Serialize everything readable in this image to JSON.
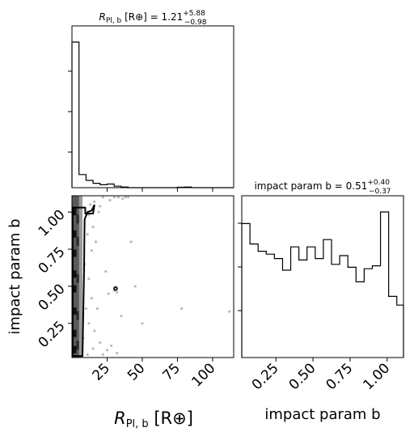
{
  "chart_data": [
    {
      "type": "histogram",
      "panel": "top-left",
      "parameter": "R_Pl,b",
      "title": {
        "prefix": "R",
        "sub": "Pl, b",
        "unit": " [R⊕] = 1.21",
        "sup": "+5.88",
        "inf": "−0.98"
      },
      "xlim": [
        0,
        115
      ],
      "bin_edges": [
        0,
        5,
        10,
        15,
        20,
        25,
        30,
        35,
        40,
        45,
        50,
        55,
        60,
        65,
        70,
        75,
        80,
        85,
        90,
        95,
        100,
        105,
        110,
        115
      ],
      "counts": [
        1.0,
        0.09,
        0.05,
        0.03,
        0.02,
        0.025,
        0.01,
        0.004,
        0,
        0,
        0,
        0,
        0,
        0,
        0,
        0.003,
        0.004,
        0,
        0,
        0,
        0,
        0,
        0
      ],
      "grid": false
    },
    {
      "type": "histogram",
      "panel": "bottom-right",
      "parameter": "impact param b",
      "title": {
        "prefix": "impact param b = 0.51",
        "sup": "+0.40",
        "inf": "−0.37"
      },
      "xlim": [
        0.02,
        1.11
      ],
      "bin_edges": [
        0.02,
        0.075,
        0.13,
        0.185,
        0.24,
        0.295,
        0.35,
        0.405,
        0.46,
        0.515,
        0.57,
        0.625,
        0.68,
        0.735,
        0.79,
        0.845,
        0.9,
        0.955,
        1.01,
        1.065,
        1.11
      ],
      "counts": [
        0.92,
        0.78,
        0.73,
        0.71,
        0.68,
        0.6,
        0.76,
        0.67,
        0.76,
        0.68,
        0.81,
        0.64,
        0.7,
        0.62,
        0.52,
        0.61,
        0.63,
        1.0,
        0.42,
        0.36
      ],
      "x_ticks": [
        "0.25",
        "0.50",
        "0.75",
        "1.00"
      ],
      "xlabel": "impact param b",
      "grid": false
    },
    {
      "type": "scatter",
      "panel": "bottom-left",
      "description_fields": "2D density of R_Pl,b versus impact param b",
      "xlim": [
        0,
        115
      ],
      "ylim": [
        0.02,
        1.11
      ],
      "x_ticks": [
        "25",
        "50",
        "75",
        "100"
      ],
      "y_ticks": [
        "0.25",
        "0.50",
        "0.75",
        "1.00"
      ],
      "xlabel": {
        "prefix": "R",
        "sub": "Pl, b",
        "unit": " [R⊕]"
      },
      "ylabel": "impact param b",
      "points": [
        [
          30,
          1.1
        ],
        [
          33,
          1.1
        ],
        [
          36,
          1.09
        ],
        [
          38,
          1.1
        ],
        [
          40,
          1.1
        ],
        [
          22,
          1.1
        ],
        [
          27,
          1.08
        ],
        [
          12,
          0.98
        ],
        [
          15,
          0.9
        ],
        [
          17,
          0.8
        ],
        [
          14,
          0.74
        ],
        [
          11,
          0.85
        ],
        [
          13,
          1.05
        ],
        [
          16,
          1.07
        ],
        [
          19,
          1.0
        ],
        [
          9,
          0.65
        ],
        [
          12,
          0.55
        ],
        [
          14,
          0.42
        ],
        [
          10,
          0.35
        ],
        [
          12,
          0.25
        ],
        [
          16,
          0.2
        ],
        [
          20,
          0.12
        ],
        [
          25,
          0.07
        ],
        [
          28,
          0.1
        ],
        [
          32,
          0.05
        ],
        [
          22,
          0.04
        ],
        [
          15,
          0.08
        ],
        [
          35,
          0.3
        ],
        [
          45,
          0.5
        ],
        [
          50,
          0.25
        ],
        [
          78,
          0.35
        ],
        [
          112,
          0.33
        ],
        [
          31,
          0.49
        ],
        [
          30,
          0.47
        ],
        [
          32,
          0.46
        ],
        [
          42,
          0.8
        ],
        [
          24,
          0.6
        ],
        [
          26,
          0.45
        ],
        [
          8,
          0.15
        ],
        [
          18,
          0.35
        ],
        [
          11,
          0.04
        ],
        [
          20,
          1.04
        ]
      ],
      "contour": [
        [
          0.5,
          0.03
        ],
        [
          7.5,
          0.03
        ],
        [
          7.8,
          0.2
        ],
        [
          8.2,
          0.4
        ],
        [
          8.6,
          0.6
        ],
        [
          8.8,
          0.8
        ],
        [
          9.0,
          0.95
        ],
        [
          11,
          1.0
        ],
        [
          14,
          1.01
        ],
        [
          16,
          1.05
        ],
        [
          15,
          0.99
        ],
        [
          9.5,
          0.99
        ],
        [
          9.4,
          1.03
        ],
        [
          0.5,
          1.03
        ]
      ],
      "island": [
        31,
        0.485
      ]
    }
  ]
}
